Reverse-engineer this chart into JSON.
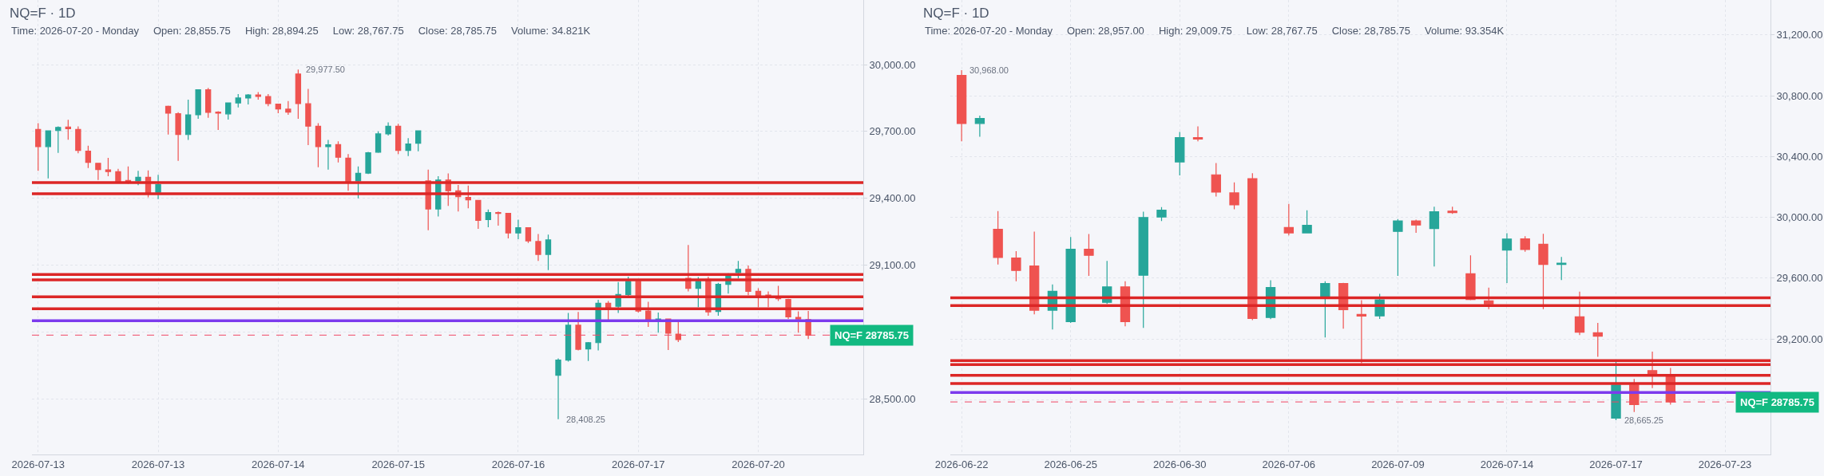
{
  "chart_data": [
    {
      "type": "candlestick",
      "title": "NQ=F · 1D",
      "subtitle": "Time: 2026-07-20 - Monday     Open: 28,855.75     High: 28,894.25     Low: 28,767.75     Close: 28,785.75     Volume: 34.821K",
      "categories": [
        "2026-07-13",
        null,
        null,
        null,
        null,
        null,
        null,
        null,
        null,
        null,
        null,
        null,
        "2026-07-13",
        null,
        null,
        null,
        null,
        null,
        null,
        null,
        null,
        null,
        null,
        null,
        "2026-07-14",
        null,
        null,
        null,
        null,
        null,
        null,
        null,
        null,
        null,
        null,
        null,
        "2026-07-15",
        null,
        null,
        null,
        null,
        null,
        null,
        null,
        null,
        null,
        null,
        null,
        "2026-07-16",
        null,
        null,
        null,
        null,
        null,
        null,
        null,
        null,
        null,
        null,
        null,
        "2026-07-17",
        null,
        null,
        null,
        null,
        null,
        null,
        null,
        null,
        null,
        null,
        null,
        "2026-07-20",
        null,
        null,
        null,
        null,
        null,
        null,
        null,
        null,
        null,
        null
      ],
      "ohlc": [
        [
          29709,
          29737,
          29523,
          29632
        ],
        [
          29632,
          29703,
          29489,
          29703
        ],
        [
          29704,
          29723,
          29604,
          29718
        ],
        [
          29720,
          29752,
          29663,
          29712
        ],
        [
          29709,
          29723,
          29602,
          29615
        ],
        [
          29611,
          29636,
          29536,
          29561
        ],
        [
          29557,
          29557,
          29482,
          29529
        ],
        [
          29527,
          29581,
          29499,
          29520
        ],
        [
          29519,
          29532,
          29470,
          29475
        ],
        [
          29480,
          29543,
          29465,
          29475
        ],
        [
          29478,
          29523,
          29459,
          29494
        ],
        [
          29494,
          29525,
          29404,
          29424
        ],
        [
          29427,
          29505,
          29396,
          29461
        ],
        [
          29813,
          29816,
          29686,
          29782
        ],
        [
          29780,
          29786,
          29568,
          29686
        ],
        [
          29686,
          29843,
          29662,
          29774
        ],
        [
          29775,
          29887,
          29757,
          29887
        ],
        [
          29887,
          29895,
          29761,
          29786
        ],
        [
          29787,
          29791,
          29707,
          29782
        ],
        [
          29779,
          29828,
          29753,
          29828
        ],
        [
          29828,
          29868,
          29808,
          29850
        ],
        [
          29850,
          29868,
          29821,
          29864
        ],
        [
          29864,
          29877,
          29843,
          29857
        ],
        [
          29857,
          29868,
          29813,
          29825
        ],
        [
          29823,
          29823,
          29782,
          29801
        ],
        [
          29800,
          29836,
          29775,
          29787
        ],
        [
          29958,
          29977.5,
          29757,
          29825
        ],
        [
          29824,
          29891,
          29639,
          29724
        ],
        [
          29723,
          29737,
          29539,
          29632
        ],
        [
          29632,
          29662,
          29529,
          29640
        ],
        [
          29641,
          29656,
          29561,
          29584
        ],
        [
          29580,
          29598,
          29434,
          29475
        ],
        [
          29478,
          29543,
          29400,
          29512
        ],
        [
          29513,
          29608,
          29509,
          29604
        ],
        [
          29607,
          29700,
          29604,
          29689
        ],
        [
          29689,
          29741,
          29682,
          29723
        ],
        [
          29723,
          29734,
          29598,
          29615
        ],
        [
          29615,
          29670,
          29589,
          29644
        ],
        [
          29647,
          29703,
          29611,
          29703
        ],
        [
          29478,
          29529,
          29257,
          29352
        ],
        [
          29352,
          29499,
          29318,
          29482
        ],
        [
          29482,
          29512,
          29366,
          29434
        ],
        [
          29433,
          29460,
          29341,
          29407
        ],
        [
          29404,
          29457,
          29355,
          29393
        ],
        [
          29390,
          29390,
          29263,
          29301
        ],
        [
          29304,
          29350,
          29270,
          29336
        ],
        [
          29336,
          29341,
          29277,
          29332
        ],
        [
          29332,
          29332,
          29220,
          29244
        ],
        [
          29244,
          29304,
          29216,
          29268
        ],
        [
          29268,
          29268,
          29199,
          29209
        ],
        [
          29206,
          29240,
          29119,
          29148
        ],
        [
          29148,
          29237,
          29078,
          29213
        ],
        [
          28606,
          28681,
          28408.25,
          28674
        ],
        [
          28674,
          28885,
          28667,
          28830
        ],
        [
          28830,
          28890,
          28717,
          28722
        ],
        [
          28724,
          28755,
          28670,
          28752
        ],
        [
          28752,
          28944,
          28717,
          28929
        ],
        [
          28929,
          28939,
          28854,
          28911
        ],
        [
          28915,
          29024,
          28885,
          28968
        ],
        [
          28968,
          29048,
          28961,
          29027
        ],
        [
          29027,
          29027,
          28887,
          28894
        ],
        [
          28894,
          28935,
          28823,
          28854
        ],
        [
          28854,
          28887,
          28797,
          28858
        ],
        [
          28858,
          28858,
          28719,
          28794
        ],
        [
          28790,
          28844,
          28755,
          28766
        ],
        [
          29041,
          29190,
          28982,
          28996
        ],
        [
          28996,
          29046,
          28911,
          29027
        ],
        [
          29036,
          29048,
          28873,
          28890
        ],
        [
          28892,
          29020,
          28873,
          29014
        ],
        [
          29014,
          29063,
          28972,
          29050
        ],
        [
          29066,
          29119,
          29041,
          29081
        ],
        [
          29081,
          29098,
          28965,
          28982
        ],
        [
          28982,
          28996,
          28911,
          28961
        ],
        [
          28965,
          28982,
          28911,
          28958
        ],
        [
          28953,
          29007,
          28939,
          28949
        ],
        [
          28946,
          28949,
          28858,
          28868
        ],
        [
          28865,
          28892,
          28797,
          28858
        ],
        [
          28855.75,
          28894.25,
          28767.75,
          28785.75
        ],
        null,
        null,
        null,
        null,
        null
      ],
      "colors": [
        "#ef5350",
        "#26a69a",
        "#26a69a",
        "#ef5350",
        "#ef5350",
        "#ef5350",
        "#ef5350",
        "#ef5350",
        "#ef5350",
        "#ef5350",
        "#26a69a",
        "#ef5350",
        "#26a69a",
        "#ef5350",
        "#ef5350",
        "#26a69a",
        "#26a69a",
        "#ef5350",
        "#ef5350",
        "#26a69a",
        "#26a69a",
        "#26a69a",
        "#ef5350",
        "#ef5350",
        "#ef5350",
        "#ef5350",
        "#ef5350",
        "#ef5350",
        "#ef5350",
        "#26a69a",
        "#ef5350",
        "#ef5350",
        "#26a69a",
        "#26a69a",
        "#26a69a",
        "#26a69a",
        "#ef5350",
        "#26a69a",
        "#26a69a",
        "#ef5350",
        "#26a69a",
        "#ef5350",
        "#ef5350",
        "#ef5350",
        "#ef5350",
        "#26a69a",
        "#ef5350",
        "#ef5350",
        "#26a69a",
        "#ef5350",
        "#ef5350",
        "#26a69a",
        "#26a69a",
        "#26a69a",
        "#ef5350",
        "#26a69a",
        "#26a69a",
        "#ef5350",
        "#26a69a",
        "#26a69a",
        "#ef5350",
        "#ef5350",
        "#26a69a",
        "#ef5350",
        "#ef5350",
        "#ef5350",
        "#26a69a",
        "#ef5350",
        "#26a69a",
        "#26a69a",
        "#26a69a",
        "#ef5350",
        "#ef5350",
        "#ef5350",
        "#ef5350",
        "#ef5350",
        "#ef5350",
        "#ef5350",
        null,
        null,
        null,
        null,
        null
      ],
      "ylim": [
        28250,
        30290
      ],
      "yticks": [
        {
          "value": 28500,
          "label": "28,500.00"
        },
        {
          "value": 28800,
          "label": null
        },
        {
          "value": 29100,
          "label": "29,100.00"
        },
        {
          "value": 29400,
          "label": "29,400.00"
        },
        {
          "value": 29700,
          "label": "29,700.00"
        },
        {
          "value": 30000,
          "label": "30,000.00"
        }
      ],
      "grid": true,
      "annotations": [
        "29,977.50",
        "28,408.25"
      ],
      "ref_lines": [
        {
          "axis": "y",
          "value": 29470,
          "color": "#dc2626",
          "line_style": "solid"
        },
        {
          "axis": "y",
          "value": 29420,
          "color": "#dc2626",
          "line_style": "solid"
        },
        {
          "axis": "y",
          "value": 29058,
          "color": "#dc2626",
          "line_style": "solid"
        },
        {
          "axis": "y",
          "value": 29034,
          "color": "#dc2626",
          "line_style": "solid"
        },
        {
          "axis": "y",
          "value": 28958,
          "color": "#dc2626",
          "line_style": "solid"
        },
        {
          "axis": "y",
          "value": 28904,
          "color": "#dc2626",
          "line_style": "solid"
        },
        {
          "axis": "y",
          "value": 28850,
          "color": "#7c3aed",
          "line_style": "solid"
        },
        {
          "axis": "y",
          "value": 28785.75,
          "label": "NQ=F 28785.75",
          "color": "#f04864",
          "line_style": "dashed"
        }
      ]
    },
    {
      "type": "candlestick",
      "title": "NQ=F · 1D",
      "subtitle": "Time: 2026-07-20 - Monday     Open: 28,957.00     High: 29,009.75     Low: 28,767.75     Close: 28,785.75     Volume: 93.354K",
      "categories": [
        "2026-06-22",
        null,
        null,
        null,
        null,
        null,
        "2026-06-25",
        null,
        null,
        null,
        null,
        null,
        "2026-06-30",
        null,
        null,
        null,
        null,
        null,
        "2026-07-06",
        null,
        null,
        null,
        null,
        null,
        "2026-07-09",
        null,
        null,
        null,
        null,
        null,
        "2026-07-14",
        null,
        null,
        null,
        null,
        null,
        "2026-07-17",
        null,
        null,
        null,
        null,
        null,
        "2026-07-23",
        null,
        null
      ],
      "ohlc": [
        [
          30934,
          30968,
          30500,
          30618
        ],
        [
          30618,
          30670,
          30531,
          30650
        ],
        [
          29921,
          30041,
          29690,
          29736
        ],
        [
          29732,
          29777,
          29580,
          29651
        ],
        [
          29680,
          29906,
          29362,
          29389
        ],
        [
          29389,
          29559,
          29262,
          29513
        ],
        [
          29314,
          29871,
          29306,
          29790
        ],
        [
          29790,
          29891,
          29615,
          29750
        ],
        [
          29441,
          29713,
          29430,
          29543
        ],
        [
          29543,
          29580,
          29283,
          29314
        ],
        [
          29619,
          30037,
          29273,
          29999
        ],
        [
          30002,
          30068,
          29975,
          30047
        ],
        [
          30365,
          30562,
          30276,
          30525
        ],
        [
          30525,
          30598,
          30500,
          30515
        ],
        [
          30280,
          30357,
          30137,
          30166
        ],
        [
          30161,
          30230,
          30053,
          30083
        ],
        [
          30255,
          30290,
          29324,
          29335
        ],
        [
          29341,
          29586,
          29330,
          29538
        ],
        [
          29933,
          30089,
          29881,
          29898
        ],
        [
          29898,
          30047,
          29898,
          29948
        ],
        [
          29476,
          29580,
          29210,
          29565
        ],
        [
          29565,
          29569,
          29268,
          29393
        ],
        [
          29362,
          29455,
          29040,
          29351
        ],
        [
          29352,
          29497,
          29332,
          29457
        ],
        [
          29908,
          29989,
          29615,
          29977
        ],
        [
          29977,
          29985,
          29898,
          29950
        ],
        [
          29926,
          30070,
          29677,
          30037
        ],
        [
          30041,
          30070,
          30023,
          30031
        ],
        [
          29629,
          29750,
          29455,
          29460
        ],
        [
          29450,
          29538,
          29396,
          29430
        ],
        [
          29785,
          29896,
          29568,
          29857
        ],
        [
          29859,
          29876,
          29774,
          29789
        ],
        [
          29823,
          29892,
          29396,
          29690
        ],
        [
          29690,
          29740,
          29588,
          29698
        ],
        [
          29346,
          29512,
          29225,
          29245
        ],
        [
          29241,
          29305,
          29083,
          29218
        ],
        [
          28679,
          29059,
          28665.25,
          28897
        ],
        [
          28897,
          28937,
          28719,
          28768
        ],
        [
          28992,
          29117,
          28877,
          28966
        ],
        [
          28957,
          29009.75,
          28767.75,
          28785.75
        ],
        null,
        null,
        null,
        null,
        null
      ],
      "colors": [
        "#ef5350",
        "#26a69a",
        "#ef5350",
        "#ef5350",
        "#ef5350",
        "#26a69a",
        "#26a69a",
        "#ef5350",
        "#26a69a",
        "#ef5350",
        "#26a69a",
        "#26a69a",
        "#26a69a",
        "#ef5350",
        "#ef5350",
        "#ef5350",
        "#ef5350",
        "#26a69a",
        "#ef5350",
        "#26a69a",
        "#26a69a",
        "#ef5350",
        "#ef5350",
        "#26a69a",
        "#26a69a",
        "#ef5350",
        "#26a69a",
        "#ef5350",
        "#ef5350",
        "#ef5350",
        "#26a69a",
        "#ef5350",
        "#ef5350",
        "#26a69a",
        "#ef5350",
        "#ef5350",
        "#26a69a",
        "#ef5350",
        "#ef5350",
        "#ef5350",
        null,
        null,
        null,
        null,
        null
      ],
      "ylim": [
        28440,
        31430
      ],
      "yticks": [
        {
          "value": 28800,
          "label": null
        },
        {
          "value": 29200,
          "label": "29,200.00"
        },
        {
          "value": 29600,
          "label": "29,600.00"
        },
        {
          "value": 30000,
          "label": "30,000.00"
        },
        {
          "value": 30400,
          "label": "30,400.00"
        },
        {
          "value": 30800,
          "label": "30,800.00"
        },
        {
          "value": 31200,
          "label": "31,200.00"
        }
      ],
      "grid": true,
      "annotations": [
        "30,968.00",
        "28,665.25"
      ],
      "ref_lines": [
        {
          "axis": "y",
          "value": 29471,
          "color": "#dc2626",
          "line_style": "solid"
        },
        {
          "axis": "y",
          "value": 29420,
          "color": "#dc2626",
          "line_style": "solid"
        },
        {
          "axis": "y",
          "value": 29058,
          "color": "#dc2626",
          "line_style": "solid"
        },
        {
          "axis": "y",
          "value": 29032,
          "color": "#dc2626",
          "line_style": "solid"
        },
        {
          "axis": "y",
          "value": 28960,
          "color": "#dc2626",
          "line_style": "solid"
        },
        {
          "axis": "y",
          "value": 28907,
          "color": "#dc2626",
          "line_style": "solid"
        },
        {
          "axis": "y",
          "value": 28848,
          "color": "#7c3aed",
          "line_style": "solid"
        },
        {
          "axis": "y",
          "value": 28785.75,
          "label": "NQ=F 28785.75",
          "color": "#f04864",
          "line_style": "dashed"
        }
      ]
    }
  ]
}
